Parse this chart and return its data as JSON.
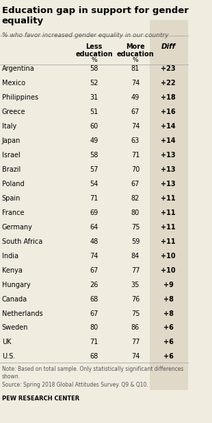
{
  "title": "Education gap in support for gender\nequality",
  "subtitle": "% who favor increased gender equality in our country",
  "col_headers": [
    "Less\neducation",
    "More\neducation",
    "Diff"
  ],
  "col_subheaders": [
    "%",
    "%",
    ""
  ],
  "countries": [
    "Argentina",
    "Mexico",
    "Philippines",
    "Greece",
    "Italy",
    "Japan",
    "Israel",
    "Brazil",
    "Poland",
    "Spain",
    "France",
    "Germany",
    "South Africa",
    "India",
    "Kenya",
    "Hungary",
    "Canada",
    "Netherlands",
    "Sweden",
    "UK",
    "U.S."
  ],
  "less_edu": [
    58,
    52,
    31,
    51,
    60,
    49,
    58,
    57,
    54,
    71,
    69,
    64,
    48,
    74,
    67,
    26,
    68,
    67,
    80,
    71,
    68
  ],
  "more_edu": [
    81,
    74,
    49,
    67,
    74,
    63,
    71,
    70,
    67,
    82,
    80,
    75,
    59,
    84,
    77,
    35,
    76,
    75,
    86,
    77,
    74
  ],
  "diff": [
    "+23",
    "+22",
    "+18",
    "+16",
    "+14",
    "+14",
    "+13",
    "+13",
    "+13",
    "+11",
    "+11",
    "+11",
    "+11",
    "+10",
    "+10",
    "+9",
    "+8",
    "+8",
    "+6",
    "+6",
    "+6"
  ],
  "note": "Note: Based on total sample. Only statistically significant differences\nshown.\nSource: Spring 2018 Global Attitudes Survey. Q9 & Q10.",
  "source": "PEW RESEARCH CENTER",
  "bg_color": "#f0ece0",
  "diff_col_color": "#e0d9c8",
  "title_color": "#000000",
  "subtitle_color": "#555555",
  "header_color": "#000000",
  "row_text_color": "#000000",
  "diff_text_color": "#000000",
  "note_color": "#555555",
  "source_color": "#000000"
}
